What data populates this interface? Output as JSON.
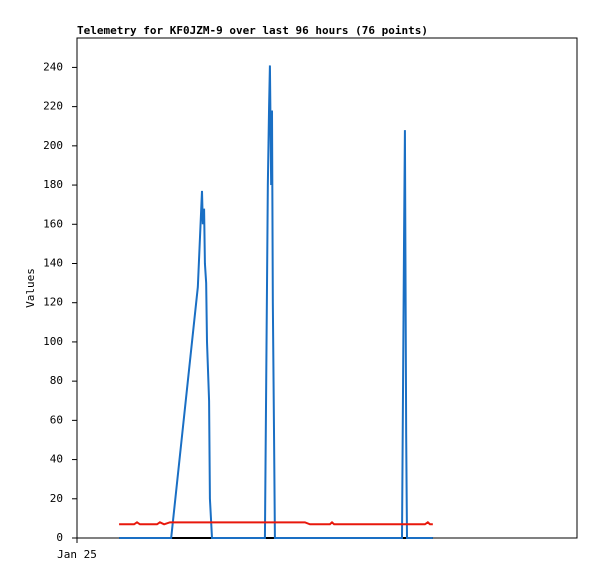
{
  "chart_data": {
    "type": "line",
    "title": "Telemetry for KF0JZM-9 over last 96 hours (76 points)",
    "y_label": "Values",
    "xlim": [
      0,
      120
    ],
    "xticks": [
      {
        "value": 0,
        "label": "Jan 25"
      }
    ],
    "ylim": [
      0,
      255
    ],
    "yticks": [
      0,
      20,
      40,
      60,
      80,
      100,
      120,
      140,
      160,
      180,
      200,
      220,
      240
    ],
    "grid": false,
    "series": [
      {
        "color": "#000000",
        "x": [
          10.1,
          85.4
        ],
        "values": [
          0,
          0
        ]
      },
      {
        "color": "#1a6fc4",
        "x": [
          10.1,
          22.6,
          29.0,
          30.0,
          30.2,
          30.5,
          30.7,
          31.0,
          31.2,
          31.7,
          31.9,
          32.4,
          45.1,
          45.8,
          46.1,
          46.3,
          46.6,
          46.8,
          47.0,
          47.3,
          47.5,
          78.0,
          78.5,
          78.7,
          79.0,
          79.2,
          85.4
        ],
        "values": [
          0,
          0,
          128,
          177,
          160,
          168,
          140,
          130,
          100,
          70,
          20,
          0,
          0,
          180,
          220,
          241,
          180,
          218,
          120,
          50,
          0,
          0,
          155,
          208,
          53,
          0,
          0
        ]
      },
      {
        "color": "#e8180c",
        "x": [
          10.1,
          13.7,
          14.4,
          15.1,
          19.2,
          19.9,
          20.9,
          22.3,
          54.7,
          55.9,
          60.7,
          61.2,
          61.7,
          83.5,
          84.2,
          84.7,
          85.4
        ],
        "values": [
          7,
          7,
          8,
          7,
          7,
          8,
          7,
          8,
          8,
          7,
          7,
          8,
          7,
          7,
          8,
          7,
          7
        ]
      }
    ]
  }
}
